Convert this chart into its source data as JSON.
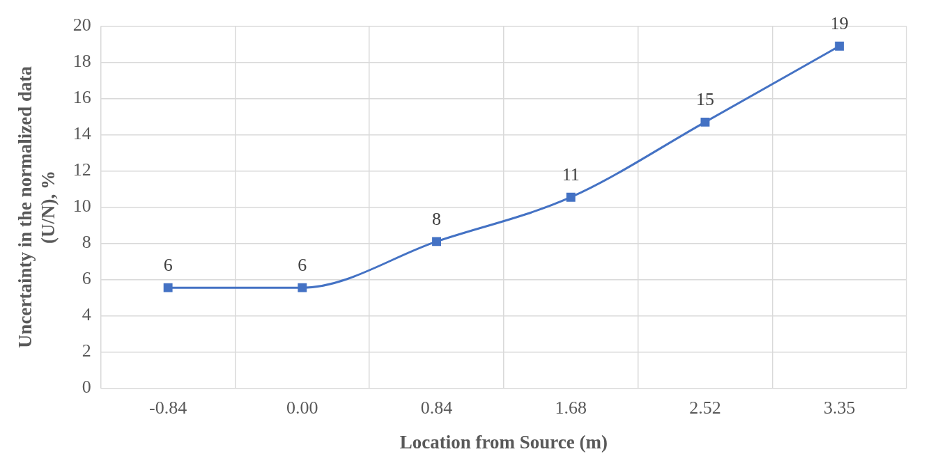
{
  "chart_data": {
    "type": "line",
    "xlabel": "Location from Source (m)",
    "ylabel": "Uncertainty in the normalized data (U/N), %",
    "categories": [
      "-0.84",
      "0.00",
      "0.84",
      "1.68",
      "2.52",
      "3.35"
    ],
    "series": [
      {
        "color": "#4472c4",
        "values": [
          5.55,
          5.55,
          8.1,
          10.55,
          14.7,
          18.9
        ],
        "value_labels": [
          "6",
          "6",
          "8",
          "11",
          "15",
          "19"
        ]
      }
    ],
    "ylim": [
      0,
      20
    ],
    "yticks": [
      0,
      2,
      4,
      6,
      8,
      10,
      12,
      14,
      16,
      18,
      20
    ],
    "grid": true,
    "legend": false,
    "marker": "square",
    "line_style": "solid"
  }
}
